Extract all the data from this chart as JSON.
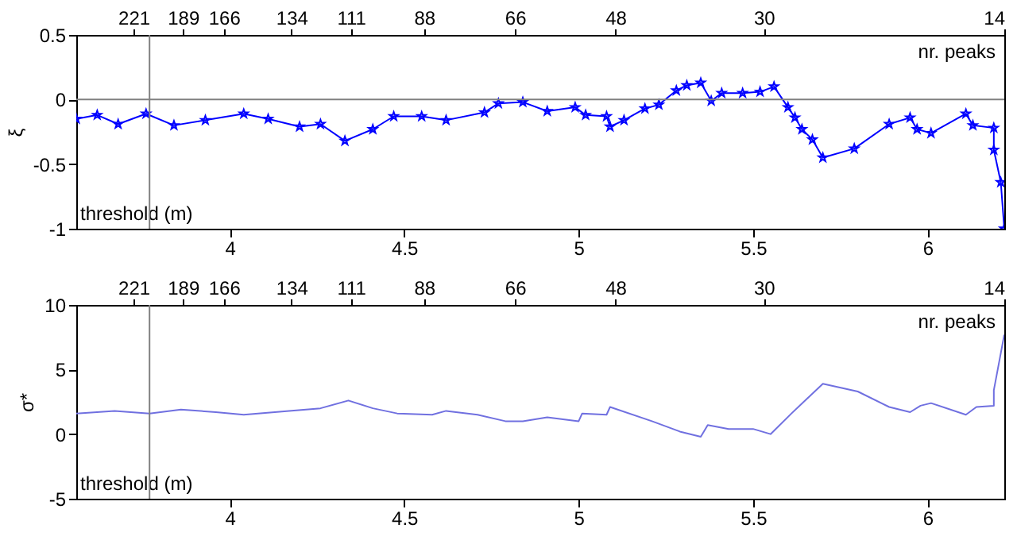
{
  "chart_data": [
    {
      "type": "line",
      "xlabel": "threshold (m)",
      "x2label": "nr. peaks",
      "log": "x2",
      "ylabel": "ξ",
      "marker": "star",
      "xlim": [
        3.56,
        6.22
      ],
      "xticks": [
        4,
        4.5,
        5,
        5.5,
        6
      ],
      "ylim": [
        -1,
        0.5
      ],
      "yticks": [
        -1,
        -0.5,
        0,
        0.5
      ],
      "x2lim": [
        265,
        14
      ],
      "x2ticks": [
        221,
        189,
        166,
        134,
        111,
        88,
        66,
        48,
        30,
        14
      ],
      "series": [
        {
          "color": "#0000ff",
          "x": [
            3.56,
            3.62,
            3.68,
            3.76,
            3.84,
            3.93,
            4.04,
            4.11,
            4.2,
            4.26,
            4.33,
            4.41,
            4.47,
            4.55,
            4.62,
            4.73,
            4.77,
            4.84,
            4.91,
            4.99,
            5.02,
            5.08,
            5.09,
            5.13,
            5.19,
            5.23,
            5.28,
            5.31,
            5.35,
            5.38,
            5.41,
            5.47,
            5.52,
            5.56,
            5.6,
            5.62,
            5.64,
            5.67,
            5.7,
            5.79,
            5.89,
            5.95,
            5.97,
            6.01,
            6.11,
            6.13,
            6.19,
            6.19,
            6.21,
            6.22
          ],
          "values": [
            -0.15,
            -0.12,
            -0.19,
            -0.11,
            -0.2,
            -0.16,
            -0.11,
            -0.15,
            -0.21,
            -0.19,
            -0.32,
            -0.23,
            -0.13,
            -0.13,
            -0.16,
            -0.1,
            -0.03,
            -0.02,
            -0.09,
            -0.06,
            -0.12,
            -0.13,
            -0.21,
            -0.16,
            -0.07,
            -0.04,
            0.07,
            0.11,
            0.13,
            -0.01,
            0.05,
            0.05,
            0.06,
            0.1,
            -0.06,
            -0.14,
            -0.23,
            -0.31,
            -0.45,
            -0.38,
            -0.19,
            -0.14,
            -0.23,
            -0.26,
            -0.11,
            -0.2,
            -0.22,
            -0.39,
            -0.64,
            -1.0
          ]
        }
      ],
      "ref_lines": [
        {
          "axis": "y",
          "value": 0,
          "color": "#808080"
        },
        {
          "axis": "x",
          "value": 3.77,
          "color": "#808080"
        }
      ]
    },
    {
      "type": "line",
      "xlabel": "threshold (m)",
      "x2label": "nr. peaks",
      "log": "x2",
      "ylabel": "σ*",
      "xlim": [
        3.56,
        6.22
      ],
      "xticks": [
        4,
        4.5,
        5,
        5.5,
        6
      ],
      "ylim": [
        -5,
        10
      ],
      "yticks": [
        -5,
        0,
        5,
        10
      ],
      "x2lim": [
        265,
        14
      ],
      "x2ticks": [
        221,
        189,
        166,
        134,
        111,
        88,
        66,
        48,
        30,
        14
      ],
      "series": [
        {
          "color": "#7070e0",
          "x": [
            3.56,
            3.67,
            3.77,
            3.86,
            3.96,
            4.04,
            4.17,
            4.26,
            4.34,
            4.41,
            4.48,
            4.58,
            4.62,
            4.71,
            4.79,
            4.84,
            4.91,
            5.0,
            5.01,
            5.08,
            5.09,
            5.21,
            5.29,
            5.35,
            5.37,
            5.43,
            5.5,
            5.55,
            5.61,
            5.7,
            5.8,
            5.89,
            5.95,
            5.98,
            6.01,
            6.11,
            6.14,
            6.19,
            6.19,
            6.22
          ],
          "values": [
            1.6,
            1.8,
            1.6,
            1.9,
            1.7,
            1.5,
            1.8,
            2.0,
            2.6,
            2.0,
            1.6,
            1.5,
            1.8,
            1.5,
            1.0,
            1.0,
            1.3,
            1.0,
            1.6,
            1.5,
            2.1,
            1.0,
            0.2,
            -0.2,
            0.7,
            0.4,
            0.4,
            0.0,
            1.6,
            3.9,
            3.3,
            2.1,
            1.7,
            2.2,
            2.4,
            1.5,
            2.1,
            2.2,
            3.4,
            7.7
          ]
        }
      ],
      "ref_lines": [
        {
          "axis": "x",
          "value": 3.77,
          "color": "#808080"
        }
      ]
    }
  ]
}
